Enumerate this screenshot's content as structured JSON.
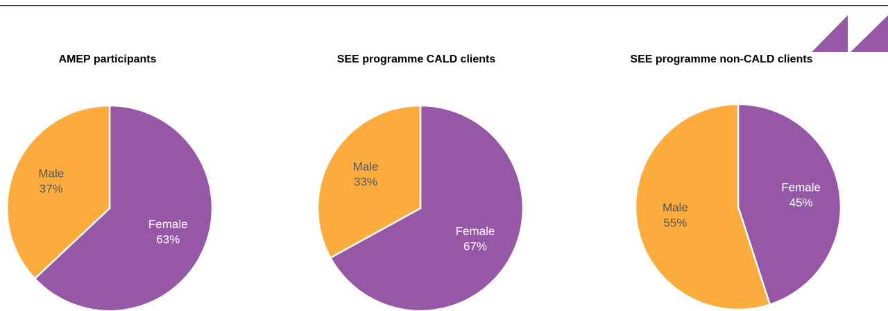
{
  "chart_data": [
    {
      "type": "pie",
      "title": "AMEP participants",
      "categories": [
        "Female",
        "Male"
      ],
      "values": [
        63,
        37
      ],
      "value_labels": [
        "63%",
        "37%"
      ],
      "colors": [
        "#9657a7",
        "#fbac3c"
      ]
    },
    {
      "type": "pie",
      "title": "SEE programme CALD clients",
      "categories": [
        "Female",
        "Male"
      ],
      "values": [
        67,
        33
      ],
      "value_labels": [
        "67%",
        "33%"
      ],
      "colors": [
        "#9657a7",
        "#fbac3c"
      ]
    },
    {
      "type": "pie",
      "title": "SEE programme non-CALD clients",
      "categories": [
        "Female",
        "Male"
      ],
      "values": [
        45,
        55
      ],
      "value_labels": [
        "45%",
        "55%"
      ],
      "colors": [
        "#9657a7",
        "#fbac3c"
      ]
    }
  ]
}
